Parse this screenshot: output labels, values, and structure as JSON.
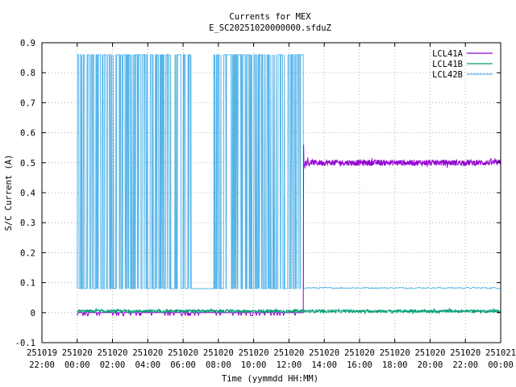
{
  "chart_data": {
    "type": "line",
    "title": "Currents for MEX",
    "subtitle": "E_SC20251020000000.sfduZ",
    "xlabel": "Time (yymmdd HH:MM)",
    "ylabel": "S/C Current (A)",
    "ylim": [
      -0.1,
      0.9
    ],
    "xlim_hours": [
      -2,
      24
    ],
    "yticks": [
      "-0.1",
      "0",
      "0.1",
      "0.2",
      "0.3",
      "0.4",
      "0.5",
      "0.6",
      "0.7",
      "0.8",
      "0.9"
    ],
    "xticks": [
      {
        "date": "251019",
        "time": "22:00"
      },
      {
        "date": "251020",
        "time": "00:00"
      },
      {
        "date": "251020",
        "time": "02:00"
      },
      {
        "date": "251020",
        "time": "04:00"
      },
      {
        "date": "251020",
        "time": "06:00"
      },
      {
        "date": "251020",
        "time": "08:00"
      },
      {
        "date": "251020",
        "time": "10:00"
      },
      {
        "date": "251020",
        "time": "12:00"
      },
      {
        "date": "251020",
        "time": "14:00"
      },
      {
        "date": "251020",
        "time": "16:00"
      },
      {
        "date": "251020",
        "time": "18:00"
      },
      {
        "date": "251020",
        "time": "20:00"
      },
      {
        "date": "251020",
        "time": "22:00"
      },
      {
        "date": "251021",
        "time": "00:00"
      }
    ],
    "grid": true,
    "legend_position": "top-right",
    "series": [
      {
        "name": "LCL41A",
        "color": "#9400d3",
        "segments": [
          {
            "x_start": "251020 00:00",
            "x_end": "251020 12:50",
            "baseline": 0.0,
            "spikes_to": -0.01
          },
          {
            "x_start": "251020 12:50",
            "x_end": "251021 00:00",
            "baseline": 0.5,
            "noise": 0.01,
            "peak": 0.56
          }
        ]
      },
      {
        "name": "LCL41B",
        "color": "#009e73",
        "segments": [
          {
            "x_start": "251020 00:00",
            "x_end": "251021 00:00",
            "baseline": 0.005,
            "noise": 0.005
          }
        ]
      },
      {
        "name": "LCL42B",
        "color": "#56b4e9",
        "segments": [
          {
            "x_start": "251020 00:00",
            "x_end": "251020 06:30",
            "low": 0.08,
            "high": 0.86,
            "mode": "toggling"
          },
          {
            "x_start": "251020 06:30",
            "x_end": "251020 07:45",
            "low": 0.08,
            "high": 0.08,
            "mode": "steady"
          },
          {
            "x_start": "251020 07:45",
            "x_end": "251020 12:50",
            "low": 0.08,
            "high": 0.86,
            "mode": "toggling"
          },
          {
            "x_start": "251020 12:50",
            "x_end": "251021 00:00",
            "low": 0.08,
            "high": 0.085,
            "mode": "steady"
          }
        ]
      }
    ]
  }
}
